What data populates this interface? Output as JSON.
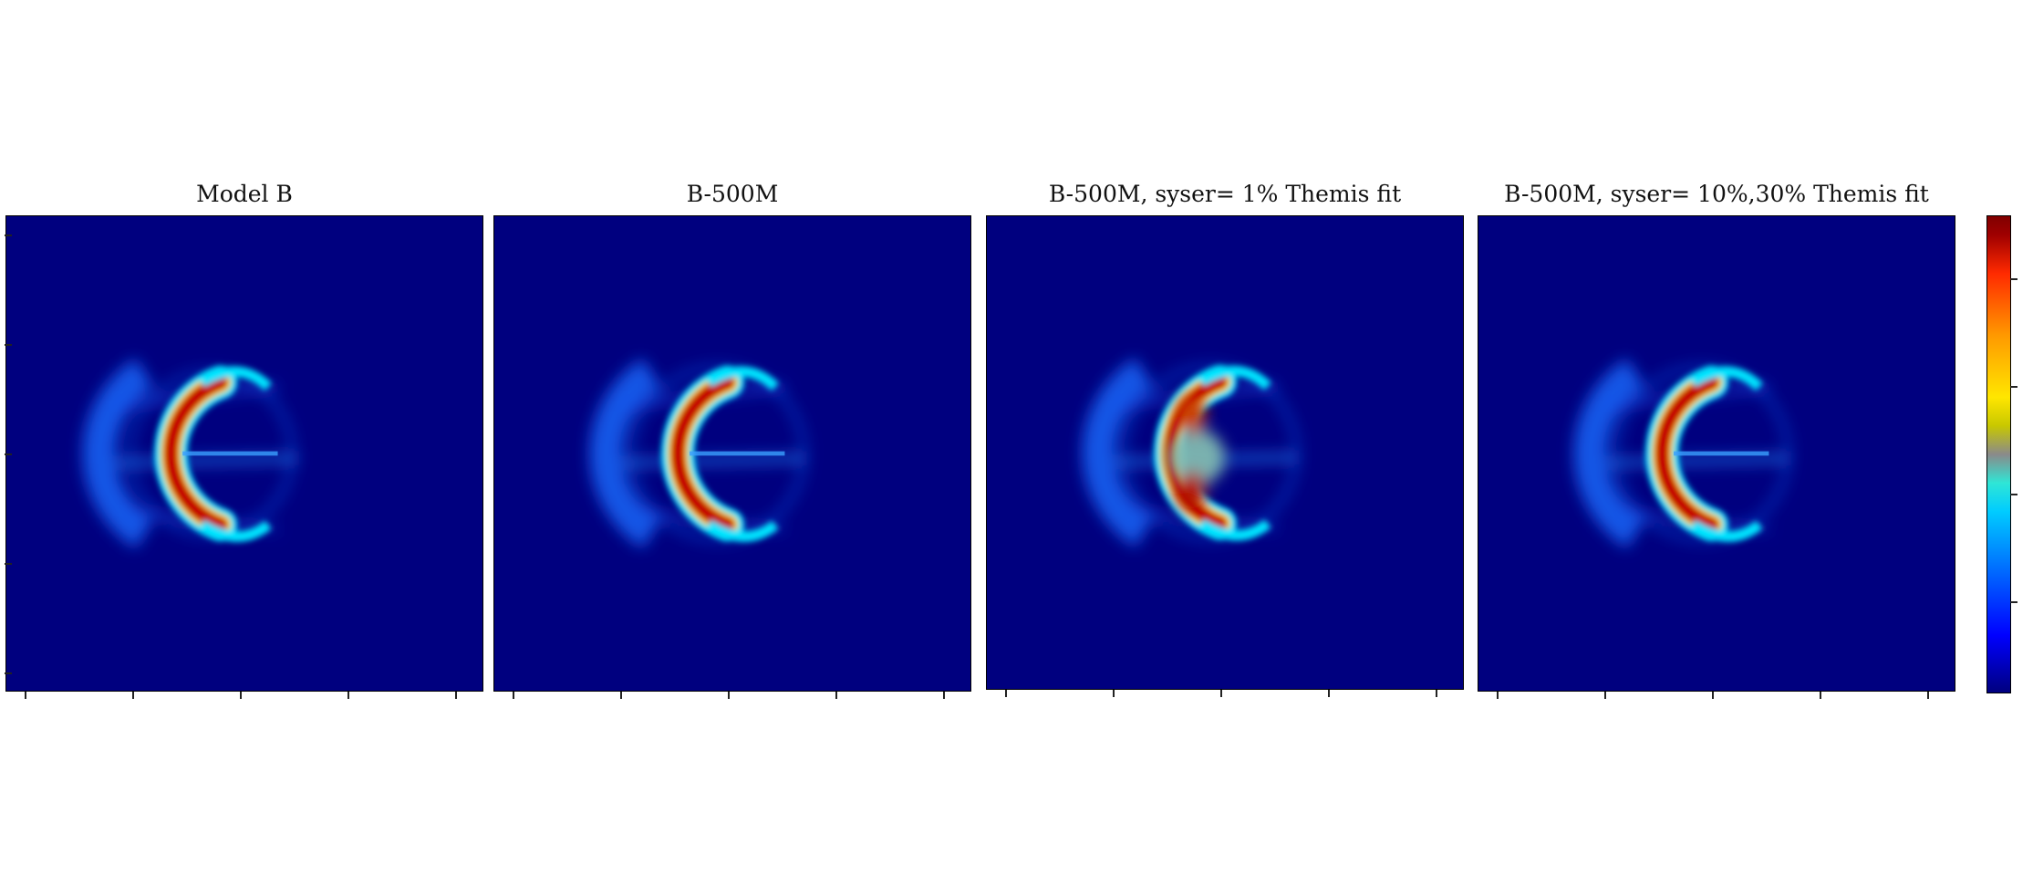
{
  "chart_data": [
    {
      "type": "heatmap",
      "title": "Model B",
      "colormap": "jet",
      "variant": "model",
      "gap": "clean"
    },
    {
      "type": "heatmap",
      "title": "B-500M",
      "colormap": "jet",
      "variant": "recon",
      "gap": "clean"
    },
    {
      "type": "heatmap",
      "title": "B-500M, syser= 1% Themis fit",
      "colormap": "jet",
      "variant": "recon",
      "gap": "smeared"
    },
    {
      "type": "heatmap",
      "title": "B-500M, syser= 10%,30% Themis fit",
      "colormap": "jet",
      "variant": "recon",
      "gap": "clean"
    }
  ],
  "colorbar": {
    "colormap": "jet",
    "colors": [
      "#00007f",
      "#0000ff",
      "#00ccff",
      "#8a8a8a",
      "#ffe600",
      "#ff2a00",
      "#800000"
    ]
  },
  "colors": {
    "background": "#00007f",
    "ring_outer": "#1a6bff",
    "ring_mid": "#00e5ff",
    "ring_inner": "#ffd400",
    "ring_core": "#c40000"
  }
}
